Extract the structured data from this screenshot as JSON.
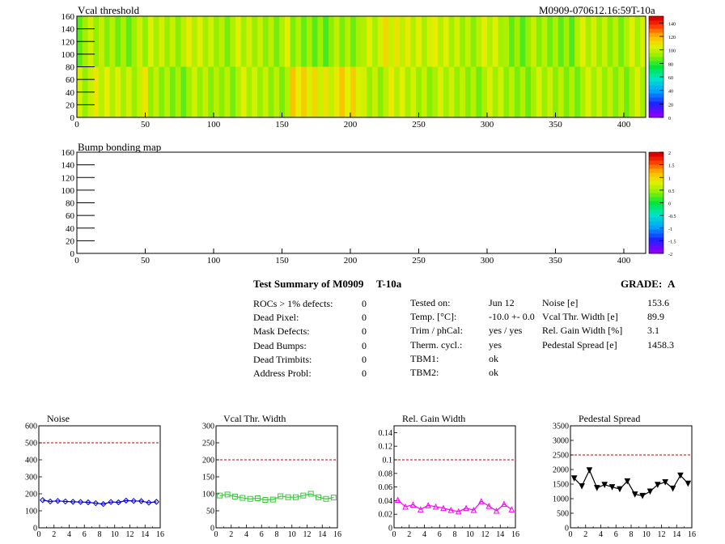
{
  "heatmaps": [
    {
      "title": "Vcal threshold",
      "run_label": "M0909-070612.16:59T-10a",
      "x_ticks": [
        "0",
        "50",
        "100",
        "150",
        "200",
        "250",
        "300",
        "350",
        "400"
      ],
      "y_ticks": [
        "0",
        "20",
        "40",
        "60",
        "80",
        "100",
        "120",
        "140",
        "160"
      ],
      "palette_ticks": [
        "0",
        "20",
        "40",
        "60",
        "80",
        "100",
        "120",
        "140"
      ]
    },
    {
      "title": "Bump bonding map",
      "x_ticks": [
        "0",
        "50",
        "100",
        "150",
        "200",
        "250",
        "300",
        "350",
        "400"
      ],
      "y_ticks": [
        "0",
        "20",
        "40",
        "60",
        "80",
        "100",
        "120",
        "140",
        "160"
      ],
      "palette_ticks": [
        "-2",
        "-1.5",
        "-1",
        "-0.5",
        "0",
        "0.5",
        "1",
        "1.5",
        "2"
      ]
    }
  ],
  "summary": {
    "title": "Test Summary of M0909",
    "temp_tag": "T-10a",
    "grade_label": "GRADE:",
    "grade_value": "A",
    "col1": [
      {
        "label": "ROCs > 1% defects:",
        "value": "0"
      },
      {
        "label": "Dead Pixel:",
        "value": "0"
      },
      {
        "label": "Mask Defects:",
        "value": "0"
      },
      {
        "label": "Dead Bumps:",
        "value": "0"
      },
      {
        "label": "Dead Trimbits:",
        "value": "0"
      },
      {
        "label": "Address Probl:",
        "value": "0"
      }
    ],
    "col2": [
      {
        "label": "Tested on:",
        "value": "Jun 12"
      },
      {
        "label": "Temp. [°C]:",
        "value": "-10.0 +- 0.0"
      },
      {
        "label": "Trim / phCal:",
        "value": "yes / yes"
      },
      {
        "label": "Therm. cycl.:",
        "value": "yes"
      },
      {
        "label": "TBM1:",
        "value": "ok"
      },
      {
        "label": "TBM2:",
        "value": "ok"
      }
    ],
    "col3": [
      {
        "label": "Noise [e]",
        "value": "153.6"
      },
      {
        "label": "Vcal Thr. Width [e]",
        "value": "89.9"
      },
      {
        "label": "Rel. Gain Width [%]",
        "value": "3.1"
      },
      {
        "label": "Pedestal Spread [e]",
        "value": "1458.3"
      }
    ]
  },
  "colors": {
    "noise": "#0000cc",
    "vcal": "#33cc33",
    "gain": "#ff00ff",
    "pedestal": "#000000",
    "limit": "#cc0000"
  },
  "chart_data": [
    {
      "type": "heatmap",
      "title": "Vcal threshold",
      "xlim": [
        0,
        416
      ],
      "ylim": [
        0,
        160
      ],
      "zlim": [
        0,
        150
      ],
      "note_values": "approx. 85-105 everywhere (yellow-green), ROC blocks of 52x80",
      "roc_means_top": [
        95,
        100,
        98,
        92,
        105,
        100,
        93,
        98
      ],
      "roc_means_bottom": [
        102,
        95,
        98,
        110,
        100,
        97,
        96,
        97
      ]
    },
    {
      "type": "heatmap",
      "title": "Bump bonding map",
      "xlim": [
        0,
        416
      ],
      "ylim": [
        0,
        160
      ],
      "zlim": [
        -2,
        2
      ],
      "values": []
    },
    {
      "type": "line",
      "title": "Noise",
      "x": [
        0,
        1,
        2,
        3,
        4,
        5,
        6,
        7,
        8,
        9,
        10,
        11,
        12,
        13,
        14,
        15
      ],
      "values": [
        163,
        155,
        158,
        155,
        153,
        152,
        150,
        145,
        140,
        152,
        150,
        160,
        158,
        157,
        148,
        153
      ],
      "xlim": [
        0,
        16
      ],
      "ylim": [
        0,
        600
      ],
      "limit": 500,
      "xticks": [
        "0",
        "2",
        "4",
        "6",
        "8",
        "10",
        "12",
        "14",
        "16"
      ],
      "yticks": [
        "0",
        "100",
        "200",
        "300",
        "400",
        "500",
        "600"
      ]
    },
    {
      "type": "line",
      "title": "Vcal Thr. Width",
      "x": [
        0,
        1,
        2,
        3,
        4,
        5,
        6,
        7,
        8,
        9,
        10,
        11,
        12,
        13,
        14,
        15
      ],
      "values": [
        95,
        98,
        92,
        88,
        85,
        87,
        82,
        83,
        93,
        90,
        90,
        95,
        100,
        90,
        85,
        89
      ],
      "xlim": [
        0,
        16
      ],
      "ylim": [
        0,
        300
      ],
      "limit": 200,
      "xticks": [
        "0",
        "2",
        "4",
        "6",
        "8",
        "10",
        "12",
        "14",
        "16"
      ],
      "yticks": [
        "0",
        "50",
        "100",
        "150",
        "200",
        "250",
        "300"
      ]
    },
    {
      "type": "line",
      "title": "Rel. Gain Width",
      "x": [
        0,
        1,
        2,
        3,
        4,
        5,
        6,
        7,
        8,
        9,
        10,
        11,
        12,
        13,
        14,
        15
      ],
      "values": [
        0.041,
        0.031,
        0.034,
        0.027,
        0.033,
        0.031,
        0.029,
        0.026,
        0.024,
        0.029,
        0.026,
        0.039,
        0.032,
        0.025,
        0.035,
        0.027
      ],
      "xlim": [
        0,
        16
      ],
      "ylim": [
        0,
        0.15
      ],
      "limit": 0.1,
      "xticks": [
        "0",
        "2",
        "4",
        "6",
        "8",
        "10",
        "12",
        "14",
        "16"
      ],
      "yticks": [
        "0",
        "0.02",
        "0.04",
        "0.06",
        "0.08",
        "0.1",
        "0.12",
        "0.14"
      ]
    },
    {
      "type": "line",
      "title": "Pedestal Spread",
      "x": [
        0,
        1,
        2,
        3,
        4,
        5,
        6,
        7,
        8,
        9,
        10,
        11,
        12,
        13,
        14,
        15
      ],
      "values": [
        1700,
        1430,
        1980,
        1370,
        1480,
        1400,
        1330,
        1600,
        1150,
        1100,
        1250,
        1480,
        1570,
        1350,
        1800,
        1520
      ],
      "xlim": [
        0,
        16
      ],
      "ylim": [
        0,
        3500
      ],
      "limit": 2500,
      "xticks": [
        "0",
        "2",
        "4",
        "6",
        "8",
        "10",
        "12",
        "14",
        "16"
      ],
      "yticks": [
        "0",
        "500",
        "1000",
        "1500",
        "2000",
        "2500",
        "3000",
        "3500"
      ]
    }
  ]
}
